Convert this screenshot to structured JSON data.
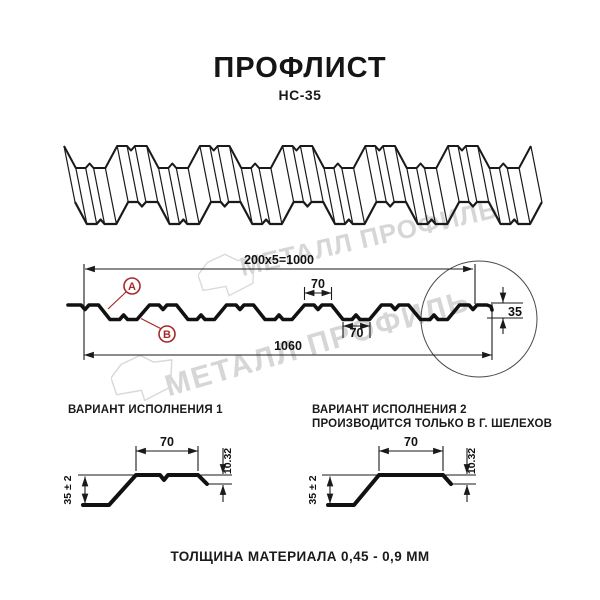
{
  "title": "ПРОФЛИСТ",
  "subtitle": "НС-35",
  "watermark": {
    "text": "МЕТАЛЛ ПРОФИЛЬ"
  },
  "cross_section": {
    "dim_module_span": "200x5=1000",
    "dim_overall_width": "1060",
    "dim_rib_top_width": "70",
    "dim_rib_bottom_width": "70",
    "dim_height": "35",
    "balloon_a": "А",
    "balloon_b": "В"
  },
  "variant1": {
    "heading": "ВАРИАНТ ИСПОЛНЕНИЯ 1",
    "dim_top_width": "70",
    "dim_lip": "10.32",
    "dim_height": "35 ± 2"
  },
  "variant2": {
    "heading": "ВАРИАНТ ИСПОЛНЕНИЯ 2",
    "note": "ПРОИЗВОДИТСЯ ТОЛЬКО В Г. ШЕЛЕХОВ",
    "dim_top_width": "70",
    "dim_lip": "10.32",
    "dim_height": "35 ± 2"
  },
  "footer": "ТОЛЩИНА МАТЕРИАЛА 0,45 - 0,9 ММ",
  "colors": {
    "line": "#1a1a1a",
    "accent": "#a62828",
    "watermark": "#d6d6d6"
  }
}
